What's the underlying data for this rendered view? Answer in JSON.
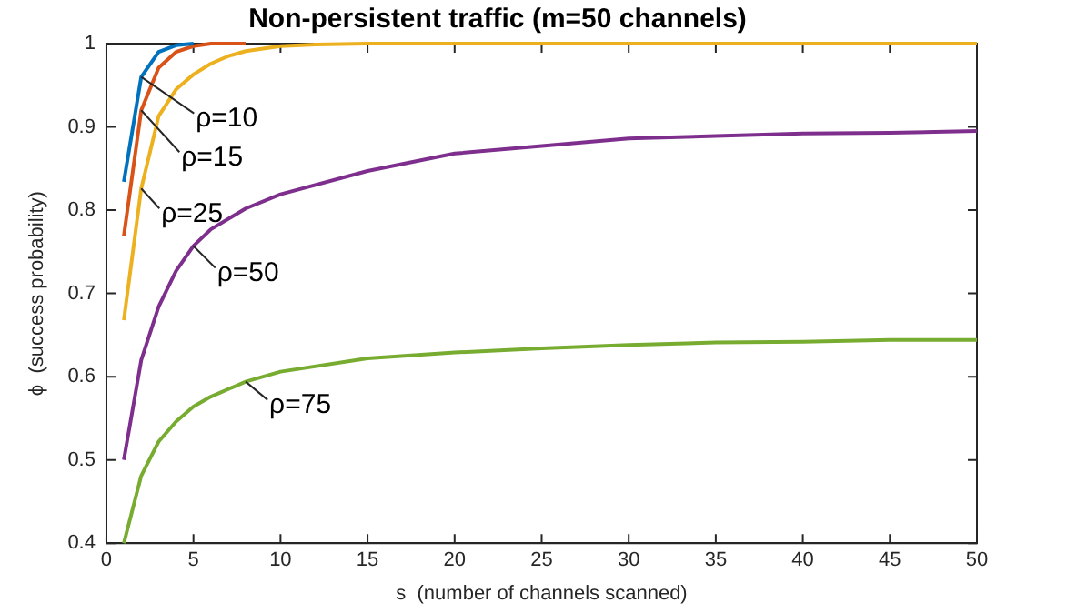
{
  "chart_data": {
    "type": "line",
    "title": "Non-persistent traffic (m=50 channels)",
    "xlabel": "s  (number of channels scanned)",
    "ylabel": "ϕ  (success probability)",
    "xlim": [
      0,
      50
    ],
    "xticks": [
      0,
      5,
      10,
      15,
      20,
      25,
      30,
      35,
      40,
      45,
      50
    ],
    "ylim": [
      0.4,
      1
    ],
    "yticks": [
      0.4,
      0.5,
      0.6,
      0.7,
      0.8,
      0.9,
      1
    ],
    "grid": false,
    "legend": false,
    "marker": "none",
    "line_style": "solid",
    "series": [
      {
        "color": "#0072bd",
        "x": [
          1,
          2,
          3,
          4,
          5
        ],
        "values": [
          0.834,
          0.96,
          0.99,
          0.998,
          1
        ]
      },
      {
        "color": "#d95319",
        "x": [
          1,
          2,
          3,
          4,
          5,
          6,
          8
        ],
        "values": [
          0.769,
          0.92,
          0.971,
          0.99,
          0.997,
          1,
          1
        ]
      },
      {
        "color": "#edb120",
        "x": [
          1,
          2,
          3,
          4,
          5,
          6,
          7,
          8,
          10,
          12,
          15,
          20,
          30,
          40,
          50
        ],
        "values": [
          0.668,
          0.826,
          0.913,
          0.945,
          0.963,
          0.976,
          0.985,
          0.991,
          0.997,
          0.999,
          1,
          1,
          1,
          1,
          1
        ]
      },
      {
        "color": "#7e2f8e",
        "x": [
          1,
          2,
          3,
          4,
          5,
          6,
          8,
          10,
          15,
          20,
          25,
          30,
          35,
          40,
          45,
          50
        ],
        "values": [
          0.5,
          0.62,
          0.684,
          0.727,
          0.757,
          0.777,
          0.802,
          0.819,
          0.847,
          0.868,
          0.877,
          0.886,
          0.889,
          0.892,
          0.893,
          0.895
        ]
      },
      {
        "color": "#77ac30",
        "x": [
          1,
          2,
          3,
          4,
          5,
          6,
          8,
          10,
          15,
          20,
          25,
          30,
          35,
          40,
          45,
          50
        ],
        "values": [
          0.4,
          0.481,
          0.522,
          0.546,
          0.564,
          0.576,
          0.594,
          0.606,
          0.622,
          0.629,
          0.634,
          0.638,
          0.641,
          0.642,
          0.644,
          0.644
        ]
      }
    ],
    "annotations": [
      {
        "text": "ρ=10",
        "x": 2,
        "y": 0.96
      },
      {
        "text": "ρ=15",
        "x": 2,
        "y": 0.92
      },
      {
        "text": "ρ=25",
        "x": 2,
        "y": 0.826
      },
      {
        "text": "ρ=50",
        "x": 5,
        "y": 0.757
      },
      {
        "text": "ρ=75",
        "x": 8,
        "y": 0.594
      }
    ]
  }
}
